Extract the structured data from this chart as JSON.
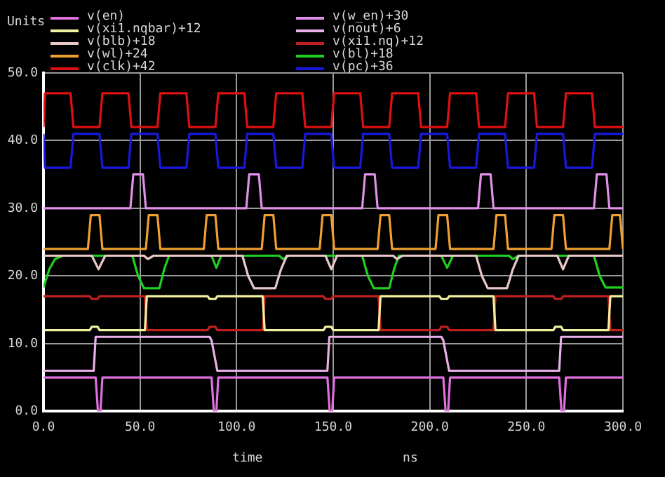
{
  "chart_data": {
    "type": "line",
    "ylabel": "Units",
    "xlabel": "time",
    "annotations": [
      "ns"
    ],
    "legend": "top",
    "grid": true,
    "marker": "none",
    "line_style": "solid",
    "xlim": [
      0,
      300
    ],
    "xticks": [
      {
        "value": 0,
        "label": "0.0"
      },
      {
        "value": 50,
        "label": "50.0"
      },
      {
        "value": 100,
        "label": "100.0"
      },
      {
        "value": 150,
        "label": "150.0"
      },
      {
        "value": 200,
        "label": "200.0"
      },
      {
        "value": 250,
        "label": "250.0"
      },
      {
        "value": 300,
        "label": "300.0"
      }
    ],
    "ylim": [
      0,
      50
    ],
    "yticks": [
      {
        "value": 0,
        "label": "0.0"
      },
      {
        "value": 10,
        "label": "10.0"
      },
      {
        "value": 20,
        "label": "20.0"
      },
      {
        "value": 30,
        "label": "30.0"
      },
      {
        "value": 40,
        "label": "40.0"
      },
      {
        "value": 50,
        "label": "50.0"
      }
    ],
    "series": [
      {
        "name": "v(en)",
        "color": "#e070e0",
        "x": [
          0,
          27,
          28.2,
          29.5,
          30.5,
          87,
          88.2,
          89.5,
          90.5,
          147,
          148.2,
          149.5,
          150.5,
          207,
          208.2,
          209.5,
          210.5,
          267,
          268.2,
          269.5,
          270.5,
          300
        ],
        "values": [
          5,
          5,
          0,
          0,
          5,
          5,
          0,
          0,
          5,
          5,
          0,
          0,
          5,
          5,
          0,
          0,
          5,
          5,
          0,
          0,
          5,
          5
        ]
      },
      {
        "name": "v(w_en)+30",
        "color": "#e090e8",
        "x": [
          0,
          45,
          46.5,
          51.5,
          53,
          105,
          106.5,
          111.5,
          113,
          165,
          166.5,
          171.5,
          173,
          225,
          226.5,
          231.5,
          233,
          285,
          286.5,
          291.5,
          293,
          300
        ],
        "values": [
          30,
          30,
          35,
          35,
          30,
          30,
          35,
          35,
          30,
          30,
          35,
          35,
          30,
          30,
          35,
          35,
          30,
          30,
          35,
          35,
          30,
          30
        ]
      },
      {
        "name": "v(xi1.nqbar)+12",
        "color": "#f0f0a0",
        "x": [
          0,
          24,
          25,
          28,
          29,
          52.5,
          53.5,
          85,
          86,
          89,
          90,
          113.5,
          114.5,
          145,
          146,
          149,
          150,
          173.5,
          174.5,
          205,
          206,
          209,
          210,
          233,
          234,
          264,
          265,
          268,
          269,
          292.5,
          293.5,
          300
        ],
        "values": [
          12,
          12,
          12.5,
          12.5,
          12,
          12,
          17,
          17,
          16.6,
          16.6,
          17,
          17,
          12,
          12,
          12.5,
          12.5,
          12,
          12,
          17,
          17,
          16.6,
          16.6,
          17,
          17,
          12,
          12,
          12.5,
          12.5,
          12,
          12,
          17,
          17
        ]
      },
      {
        "name": "v(nout)+6",
        "color": "#e8b0e8",
        "x": [
          0,
          26,
          27,
          86,
          87,
          90,
          147,
          148,
          206,
          207,
          210,
          267,
          268,
          300
        ],
        "values": [
          6,
          6,
          11,
          11,
          10.5,
          6,
          6,
          11,
          11,
          10.5,
          6,
          6,
          11,
          11
        ]
      },
      {
        "name": "v(blb)+18",
        "color": "#e8c8c8",
        "x": [
          0,
          25,
          28.5,
          32,
          52,
          54,
          57,
          103,
          106,
          109,
          120,
          123,
          126,
          146,
          149,
          152,
          181,
          183,
          186,
          224,
          227,
          230,
          240,
          243,
          246,
          266,
          269,
          272,
          300
        ],
        "values": [
          23,
          23,
          21,
          23,
          23,
          22.5,
          23,
          23,
          20,
          18.2,
          18.2,
          21,
          23,
          23,
          21,
          23,
          23,
          22.5,
          23,
          23,
          20,
          18.2,
          18.2,
          21,
          23,
          23,
          21,
          23,
          23
        ]
      },
      {
        "name": "v(xi1.nq)+12",
        "color": "#c02020",
        "x": [
          0,
          24,
          25,
          28,
          29,
          52.5,
          53.5,
          85,
          86,
          89,
          90,
          113.5,
          114.5,
          145,
          146,
          149,
          150,
          173.5,
          174.5,
          205,
          206,
          209,
          210,
          233,
          234,
          264,
          265,
          268,
          269,
          292.5,
          293.5,
          300
        ],
        "values": [
          17,
          17,
          16.6,
          16.6,
          17,
          17,
          12,
          12,
          12.5,
          12.5,
          12,
          12,
          17,
          17,
          16.6,
          16.6,
          17,
          17,
          12,
          12,
          12.5,
          12.5,
          12,
          12,
          17,
          17,
          16.6,
          16.6,
          17,
          17,
          12,
          12
        ]
      },
      {
        "name": "v(wl)+24",
        "color": "#f0a030",
        "x": [
          0,
          23,
          24.5,
          29,
          30.5,
          53,
          54.5,
          59,
          60.5,
          83,
          84.5,
          89,
          90.5,
          113,
          114.5,
          119,
          120.5,
          143,
          144.5,
          149,
          150.5,
          173,
          174.5,
          179,
          180.5,
          203,
          204.5,
          209,
          210.5,
          233,
          234.5,
          239,
          240.5,
          263,
          264.5,
          269,
          270.5,
          293,
          294.5,
          298.5,
          300
        ],
        "values": [
          24,
          24,
          29,
          29,
          24,
          24,
          29,
          29,
          24,
          24,
          29,
          29,
          24,
          24,
          29,
          29,
          24,
          24,
          29,
          29,
          24,
          24,
          29,
          29,
          24,
          24,
          29,
          29,
          24,
          24,
          29,
          29,
          24,
          24,
          29,
          29,
          24,
          24,
          29,
          29,
          24
        ]
      },
      {
        "name": "v(bl)+18",
        "color": "#20d020",
        "x": [
          0,
          3,
          6,
          10,
          46,
          49,
          52,
          60,
          62.5,
          65,
          87,
          89.5,
          92,
          122,
          124,
          127,
          165,
          168,
          171,
          179,
          181.5,
          184,
          206,
          209,
          212,
          241,
          243,
          246,
          285,
          288,
          291,
          300
        ],
        "values": [
          18.3,
          21,
          22.5,
          23,
          23,
          20,
          18.2,
          18.2,
          21,
          23,
          23,
          21.2,
          23,
          23,
          22.5,
          23,
          23,
          20,
          18.2,
          18.2,
          21,
          23,
          23,
          21.2,
          23,
          23,
          22.5,
          23,
          23,
          20,
          18.3,
          18.3
        ]
      },
      {
        "name": "v(clk)+42",
        "color": "#e01010",
        "x": [
          0,
          0.8,
          14,
          15.5,
          29,
          30.5,
          44,
          45.5,
          59,
          60.5,
          74,
          75.5,
          89,
          90.5,
          104,
          105.5,
          119,
          120.5,
          134,
          135.5,
          149,
          150.5,
          164,
          165.5,
          179,
          180.5,
          194,
          195.5,
          209,
          210.5,
          224,
          225.5,
          239,
          240.5,
          254,
          255.5,
          269,
          270.5,
          284,
          285.5,
          300
        ],
        "values": [
          42,
          47,
          47,
          42,
          42,
          47,
          47,
          42,
          42,
          47,
          47,
          42,
          42,
          47,
          47,
          42,
          42,
          47,
          47,
          42,
          42,
          47,
          47,
          42,
          42,
          47,
          47,
          42,
          42,
          47,
          47,
          42,
          42,
          47,
          47,
          42,
          42,
          47,
          47,
          42,
          42
        ]
      },
      {
        "name": "v(pc)+36",
        "color": "#1818e0",
        "x": [
          0,
          0.8,
          14,
          15.5,
          29,
          30.5,
          44,
          45.5,
          59,
          60.5,
          74,
          75.5,
          89,
          90.5,
          104,
          105.5,
          119,
          120.5,
          134,
          135.5,
          149,
          150.5,
          164,
          165.5,
          179,
          180.5,
          194,
          195.5,
          209,
          210.5,
          224,
          225.5,
          239,
          240.5,
          254,
          255.5,
          269,
          270.5,
          284,
          285.5,
          300
        ],
        "values": [
          41,
          36,
          36,
          41,
          41,
          36,
          36,
          41,
          41,
          36,
          36,
          41,
          41,
          36,
          36,
          41,
          41,
          36,
          36,
          41,
          41,
          36,
          36,
          41,
          41,
          36,
          36,
          41,
          41,
          36,
          36,
          41,
          41,
          36,
          36,
          41,
          41,
          36,
          36,
          41,
          41
        ]
      }
    ]
  }
}
